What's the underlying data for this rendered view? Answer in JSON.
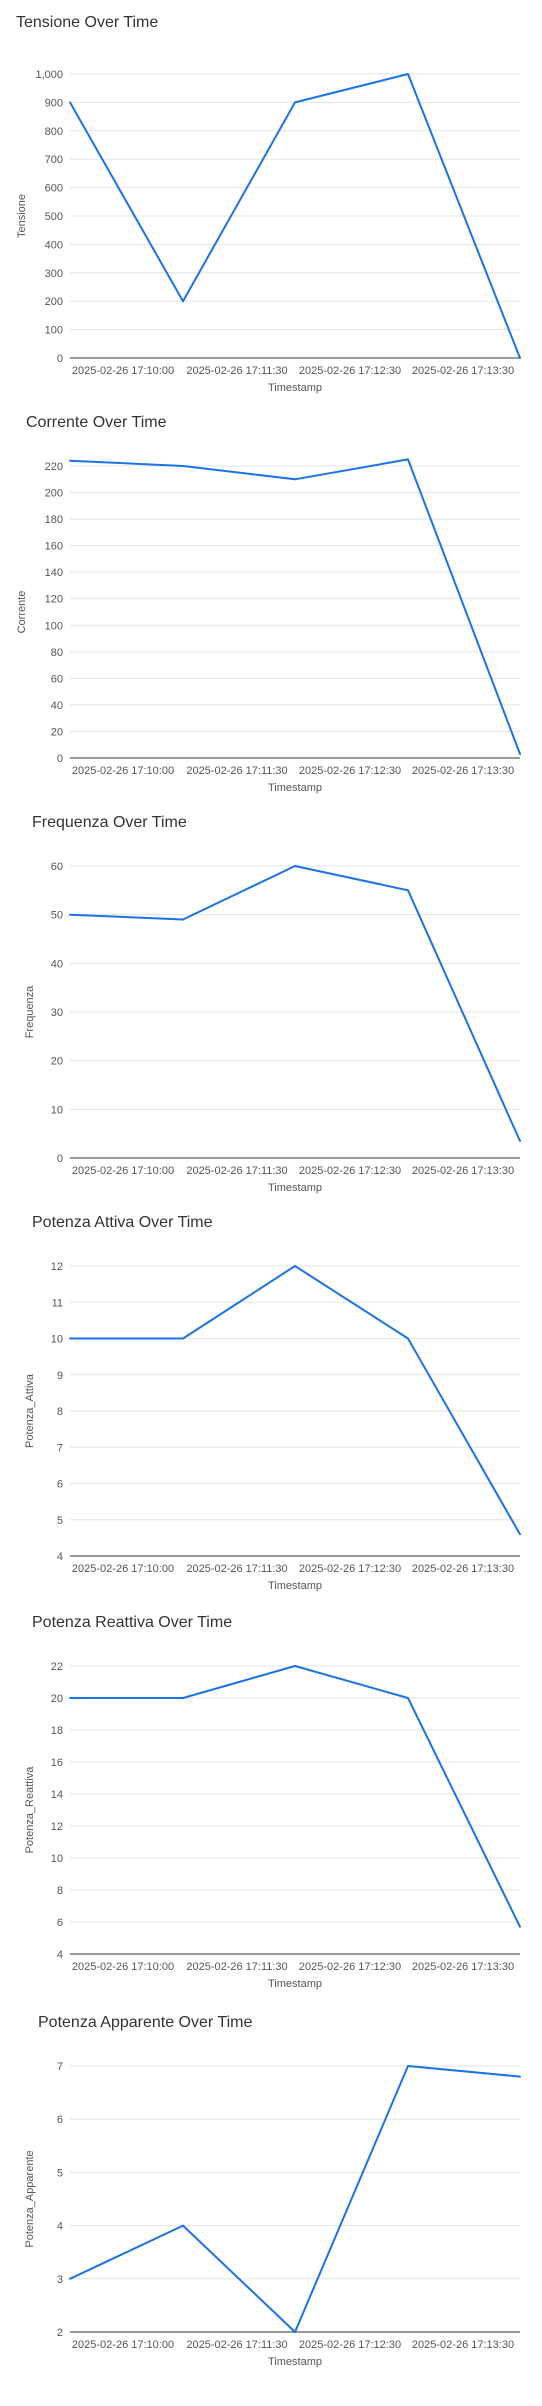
{
  "chart_data": [
    {
      "type": "line",
      "title": "Tensione Over Time",
      "xlabel": "Timestamp",
      "ylabel": "Tensione",
      "x_ticks": [
        "2025-02-26 17:10:00",
        "2025-02-26 17:11:30",
        "2025-02-26 17:12:30",
        "2025-02-26 17:13:30"
      ],
      "y_ticks": [
        "0",
        "100",
        "200",
        "300",
        "400",
        "500",
        "600",
        "700",
        "800",
        "900",
        "1,000"
      ],
      "ylim": [
        0,
        1000
      ],
      "values": [
        900,
        200,
        900,
        1000,
        0
      ],
      "grid": true,
      "line_color": "#1a73e8"
    },
    {
      "type": "line",
      "title": "Corrente Over Time",
      "xlabel": "Timestamp",
      "ylabel": "Corrente",
      "x_ticks": [
        "2025-02-26 17:10:00",
        "2025-02-26 17:11:30",
        "2025-02-26 17:12:30",
        "2025-02-26 17:13:30"
      ],
      "y_ticks": [
        "0",
        "20",
        "40",
        "60",
        "80",
        "100",
        "120",
        "140",
        "160",
        "180",
        "200",
        "220"
      ],
      "ylim": [
        0,
        220
      ],
      "values": [
        224,
        220,
        210,
        225,
        3
      ],
      "grid": true,
      "line_color": "#1a73e8"
    },
    {
      "type": "line",
      "title": "Frequenza Over Time",
      "xlabel": "Timestamp",
      "ylabel": "Frequenza",
      "x_ticks": [
        "2025-02-26 17:10:00",
        "2025-02-26 17:11:30",
        "2025-02-26 17:12:30",
        "2025-02-26 17:13:30"
      ],
      "y_ticks": [
        "0",
        "10",
        "20",
        "30",
        "40",
        "50",
        "60"
      ],
      "ylim": [
        0,
        60
      ],
      "values": [
        50,
        49,
        60,
        55,
        3.5
      ],
      "grid": true,
      "line_color": "#1a73e8"
    },
    {
      "type": "line",
      "title": "Potenza Attiva Over Time",
      "xlabel": "Timestamp",
      "ylabel": "Potenza_Attiva",
      "x_ticks": [
        "2025-02-26 17:10:00",
        "2025-02-26 17:11:30",
        "2025-02-26 17:12:30",
        "2025-02-26 17:13:30"
      ],
      "y_ticks": [
        "4",
        "5",
        "6",
        "7",
        "8",
        "9",
        "10",
        "11",
        "12"
      ],
      "ylim": [
        4,
        12
      ],
      "values": [
        10,
        10,
        12,
        10,
        4.6
      ],
      "grid": true,
      "line_color": "#1a73e8"
    },
    {
      "type": "line",
      "title": "Potenza Reattiva Over Time",
      "xlabel": "Timestamp",
      "ylabel": "Potenza_Reattiva",
      "x_ticks": [
        "2025-02-26 17:10:00",
        "2025-02-26 17:11:30",
        "2025-02-26 17:12:30",
        "2025-02-26 17:13:30"
      ],
      "y_ticks": [
        "4",
        "6",
        "8",
        "10",
        "12",
        "14",
        "16",
        "18",
        "20",
        "22"
      ],
      "ylim": [
        4,
        22
      ],
      "values": [
        20,
        20,
        22,
        20,
        5.7
      ],
      "grid": true,
      "line_color": "#1a73e8"
    },
    {
      "type": "line",
      "title": "Potenza Apparente Over Time",
      "xlabel": "Timestamp",
      "ylabel": "Potenza_Apparente",
      "x_ticks": [
        "2025-02-26 17:10:00",
        "2025-02-26 17:11:30",
        "2025-02-26 17:12:30",
        "2025-02-26 17:13:30"
      ],
      "y_ticks": [
        "2",
        "3",
        "4",
        "5",
        "6",
        "7"
      ],
      "ylim": [
        2,
        7
      ],
      "values": [
        3,
        4,
        2,
        7,
        6.8
      ],
      "grid": true,
      "line_color": "#1a73e8"
    }
  ]
}
